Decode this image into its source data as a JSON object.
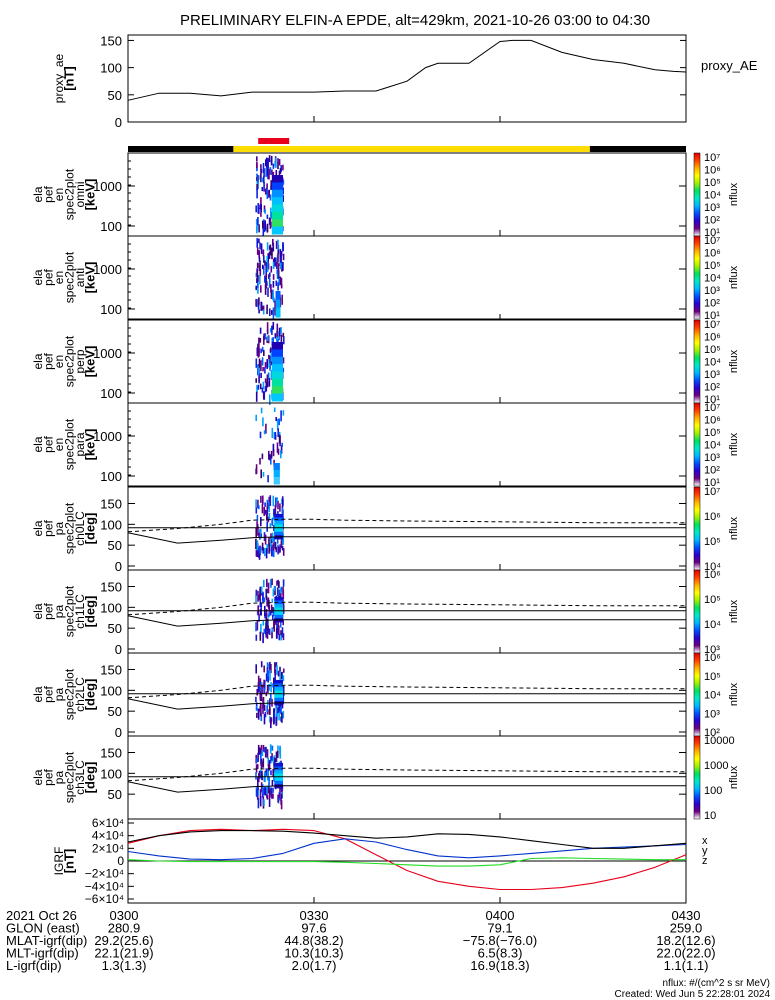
{
  "title": "PRELIMINARY ELFIN-A EPDE, alt=429km, 2021-10-26 03:00 to 04:30",
  "colors": {
    "ae_line": "#000000",
    "red": "#e8001c",
    "yellow": "#ffdd00",
    "black": "#000000",
    "blue": "#0000ff",
    "green": "#00cc00",
    "igrf_red": "#e8001c",
    "igrf_blue": "#0033cc",
    "igrf_green": "#22dd22",
    "igrf_black": "#000000"
  },
  "colorbar_stops": [
    "#ffffff",
    "#6a0080",
    "#2a00d0",
    "#0050ff",
    "#00b8ff",
    "#00e8c8",
    "#00e060",
    "#a0f000",
    "#ffff00",
    "#ffb000",
    "#ff4000",
    "#e00000"
  ],
  "panels": [
    {
      "id": "proxy_ae",
      "ylabel": [
        "proxy_ae",
        "[nT]"
      ],
      "yticks": [
        "150",
        "100",
        "50",
        "0"
      ],
      "right_label": "proxy_AE"
    },
    {
      "id": "omni",
      "ylabel": [
        "ela",
        "pef",
        "en",
        "spec2plot",
        "omni",
        "[keV]"
      ],
      "yticks": [
        "1000",
        "100"
      ],
      "cbar_ticks": [
        "10⁷",
        "10⁶",
        "10⁵",
        "10⁴",
        "10³",
        "10²",
        "10¹"
      ],
      "cbar_label": "nflux"
    },
    {
      "id": "anti",
      "ylabel": [
        "ela",
        "pef",
        "en",
        "spec2plot",
        "anti",
        "[keV]"
      ],
      "yticks": [
        "1000",
        "100"
      ],
      "cbar_ticks": [
        "10⁷",
        "10⁶",
        "10⁵",
        "10⁴",
        "10³",
        "10²",
        "10¹"
      ],
      "cbar_label": "nflux"
    },
    {
      "id": "perp",
      "ylabel": [
        "ela",
        "pef",
        "en",
        "spec2plot",
        "perp",
        "[keV]"
      ],
      "yticks": [
        "1000",
        "100"
      ],
      "cbar_ticks": [
        "10⁷",
        "10⁶",
        "10⁵",
        "10⁴",
        "10³",
        "10²",
        "10¹"
      ],
      "cbar_label": "nflux"
    },
    {
      "id": "para",
      "ylabel": [
        "ela",
        "pef",
        "en",
        "spec2plot",
        "para",
        "[keV]"
      ],
      "yticks": [
        "1000",
        "100"
      ],
      "cbar_ticks": [
        "10⁷",
        "10⁶",
        "10⁵",
        "10⁴",
        "10³",
        "10²",
        "10¹"
      ],
      "cbar_label": "nflux"
    },
    {
      "id": "ch0LC",
      "ylabel": [
        "ela",
        "pef",
        "pa",
        "spec2plot",
        "ch0LC",
        "[deg]"
      ],
      "yticks": [
        "150",
        "100",
        "50",
        "0"
      ],
      "cbar_ticks": [
        "10⁷",
        "10⁶",
        "10⁵",
        "10⁴"
      ],
      "cbar_label": "nflux"
    },
    {
      "id": "ch1LC",
      "ylabel": [
        "ela",
        "pef",
        "pa",
        "spec2plot",
        "ch1LC",
        "[deg]"
      ],
      "yticks": [
        "150",
        "100",
        "50",
        "0"
      ],
      "cbar_ticks": [
        "10⁶",
        "10⁵",
        "10⁴",
        "10³"
      ],
      "cbar_label": "nflux"
    },
    {
      "id": "ch2LC",
      "ylabel": [
        "ela",
        "pef",
        "pa",
        "spec2plot",
        "ch2LC",
        "[deg]"
      ],
      "yticks": [
        "150",
        "100",
        "50",
        "0"
      ],
      "cbar_ticks": [
        "10⁶",
        "10⁵",
        "10⁴",
        "10³",
        "10²"
      ],
      "cbar_label": "nflux"
    },
    {
      "id": "ch3LC",
      "ylabel": [
        "ela",
        "pef",
        "pa",
        "spec2plot",
        "ch3LC",
        "[deg]"
      ],
      "yticks": [
        "150",
        "100",
        "50"
      ],
      "cbar_ticks": [
        "10000",
        "1000",
        "100",
        "10"
      ],
      "cbar_label": "nflux"
    },
    {
      "id": "igrf",
      "ylabel": [
        "IGRF",
        "[nT]"
      ],
      "yticks": [
        "6×10⁴",
        "4×10⁴",
        "2×10⁴",
        "0",
        "−2×10⁴",
        "−4×10⁴",
        "−6×10⁴"
      ],
      "legend": [
        "x",
        "y",
        "z"
      ]
    }
  ],
  "chart_data": [
    {
      "type": "line",
      "title": "PRELIMINARY ELFIN-A EPDE, alt=429km, 2021-10-26 03:00 to 04:30",
      "ylabel": "proxy_ae [nT]",
      "xlim": [
        "03:00",
        "04:30"
      ],
      "ylim": [
        0,
        160
      ],
      "series": [
        {
          "name": "proxy_AE",
          "x": [
            0,
            5,
            10,
            15,
            20,
            25,
            30,
            35,
            40,
            45,
            48,
            50,
            52,
            55,
            60,
            62,
            65,
            70,
            75,
            80,
            85,
            88,
            90
          ],
          "y": [
            40,
            53,
            53,
            48,
            55,
            55,
            55,
            57,
            57,
            75,
            100,
            108,
            108,
            108,
            148,
            150,
            150,
            128,
            115,
            108,
            96,
            93,
            92
          ]
        }
      ]
    },
    {
      "type": "line",
      "ylabel": "IGRF [nT]",
      "xlim": [
        "03:00",
        "04:30"
      ],
      "ylim": [
        -60000,
        60000
      ],
      "series": [
        {
          "x": [
            0,
            5,
            10,
            15,
            20,
            25,
            30,
            35,
            40,
            45,
            50,
            55,
            60,
            65,
            70,
            75,
            80,
            85,
            90
          ],
          "y": [
            28000,
            40000,
            48000,
            50000,
            48000,
            50000,
            48000,
            35000,
            10000,
            -15000,
            -32000,
            -40000,
            -45000,
            -45000,
            -42000,
            -35000,
            -25000,
            -10000,
            10000
          ]
        },
        {
          "x": [
            0,
            5,
            10,
            15,
            20,
            25,
            30,
            35,
            40,
            45,
            50,
            55,
            60,
            65,
            70,
            75,
            80,
            85,
            90
          ],
          "y": [
            15000,
            8000,
            3000,
            2000,
            4000,
            12000,
            28000,
            35000,
            30000,
            18000,
            8000,
            5000,
            8000,
            12000,
            16000,
            20000,
            22000,
            24000,
            26000
          ]
        },
        {
          "x": [
            0,
            5,
            10,
            15,
            20,
            25,
            30,
            35,
            40,
            45,
            50,
            55,
            60,
            65,
            70,
            75,
            80,
            85,
            90
          ],
          "y": [
            2000,
            0,
            -1000,
            -1000,
            -1000,
            -1000,
            -1000,
            -2000,
            -4000,
            -6000,
            -8000,
            -8000,
            -6000,
            4000,
            5000,
            4000,
            3000,
            2000,
            2000
          ]
        },
        {
          "x": [
            0,
            5,
            10,
            15,
            20,
            25,
            30,
            35,
            40,
            45,
            50,
            55,
            60,
            65,
            70,
            75,
            80,
            85,
            90
          ],
          "y": [
            30000,
            40000,
            46000,
            48000,
            48000,
            47000,
            44000,
            40000,
            36000,
            38000,
            43000,
            42000,
            38000,
            32000,
            26000,
            20000,
            20000,
            24000,
            28000
          ]
        }
      ]
    }
  ],
  "pa_lines": {
    "x": [
      0,
      8,
      15,
      20,
      25,
      30,
      35,
      45,
      60,
      75,
      90
    ],
    "solid_lower": [
      80,
      55,
      62,
      68,
      70,
      70,
      70,
      70,
      70,
      70,
      70
    ],
    "solid_mid": [
      92,
      92,
      92,
      92,
      92,
      92,
      92,
      92,
      92,
      92,
      92
    ],
    "dashed": [
      82,
      90,
      100,
      110,
      112,
      112,
      110,
      108,
      106,
      104,
      104
    ]
  },
  "orbit_bar": {
    "black_left_end": 17,
    "yellow_end": 74.5,
    "red_start": 21,
    "red_end": 26
  },
  "footer": {
    "rows": [
      {
        "label": "2021 Oct 26",
        "vals": [
          "0300",
          "0330",
          "0400",
          "0430"
        ]
      },
      {
        "label": "GLON (east)",
        "vals": [
          "280.9",
          "97.6",
          "79.1",
          "259.0"
        ]
      },
      {
        "label": "MLAT-igrf(dip)",
        "vals": [
          "29.2(25.6)",
          "44.8(38.2)",
          "−75.8(−76.0)",
          "18.2(12.6)"
        ]
      },
      {
        "label": "MLT-igrf(dip)",
        "vals": [
          "22.1(21.9)",
          "10.3(10.3)",
          "6.5(8.3)",
          "22.0(22.0)"
        ]
      },
      {
        "label": "L-igrf(dip)",
        "vals": [
          "1.3(1.3)",
          "2.0(1.7)",
          "16.9(18.3)",
          "1.1(1.1)"
        ]
      }
    ],
    "nflux_unit": "nflux: #/(cm^2 s sr MeV)",
    "created": "Created: Wed Jun  5 22:28:01 2024"
  }
}
